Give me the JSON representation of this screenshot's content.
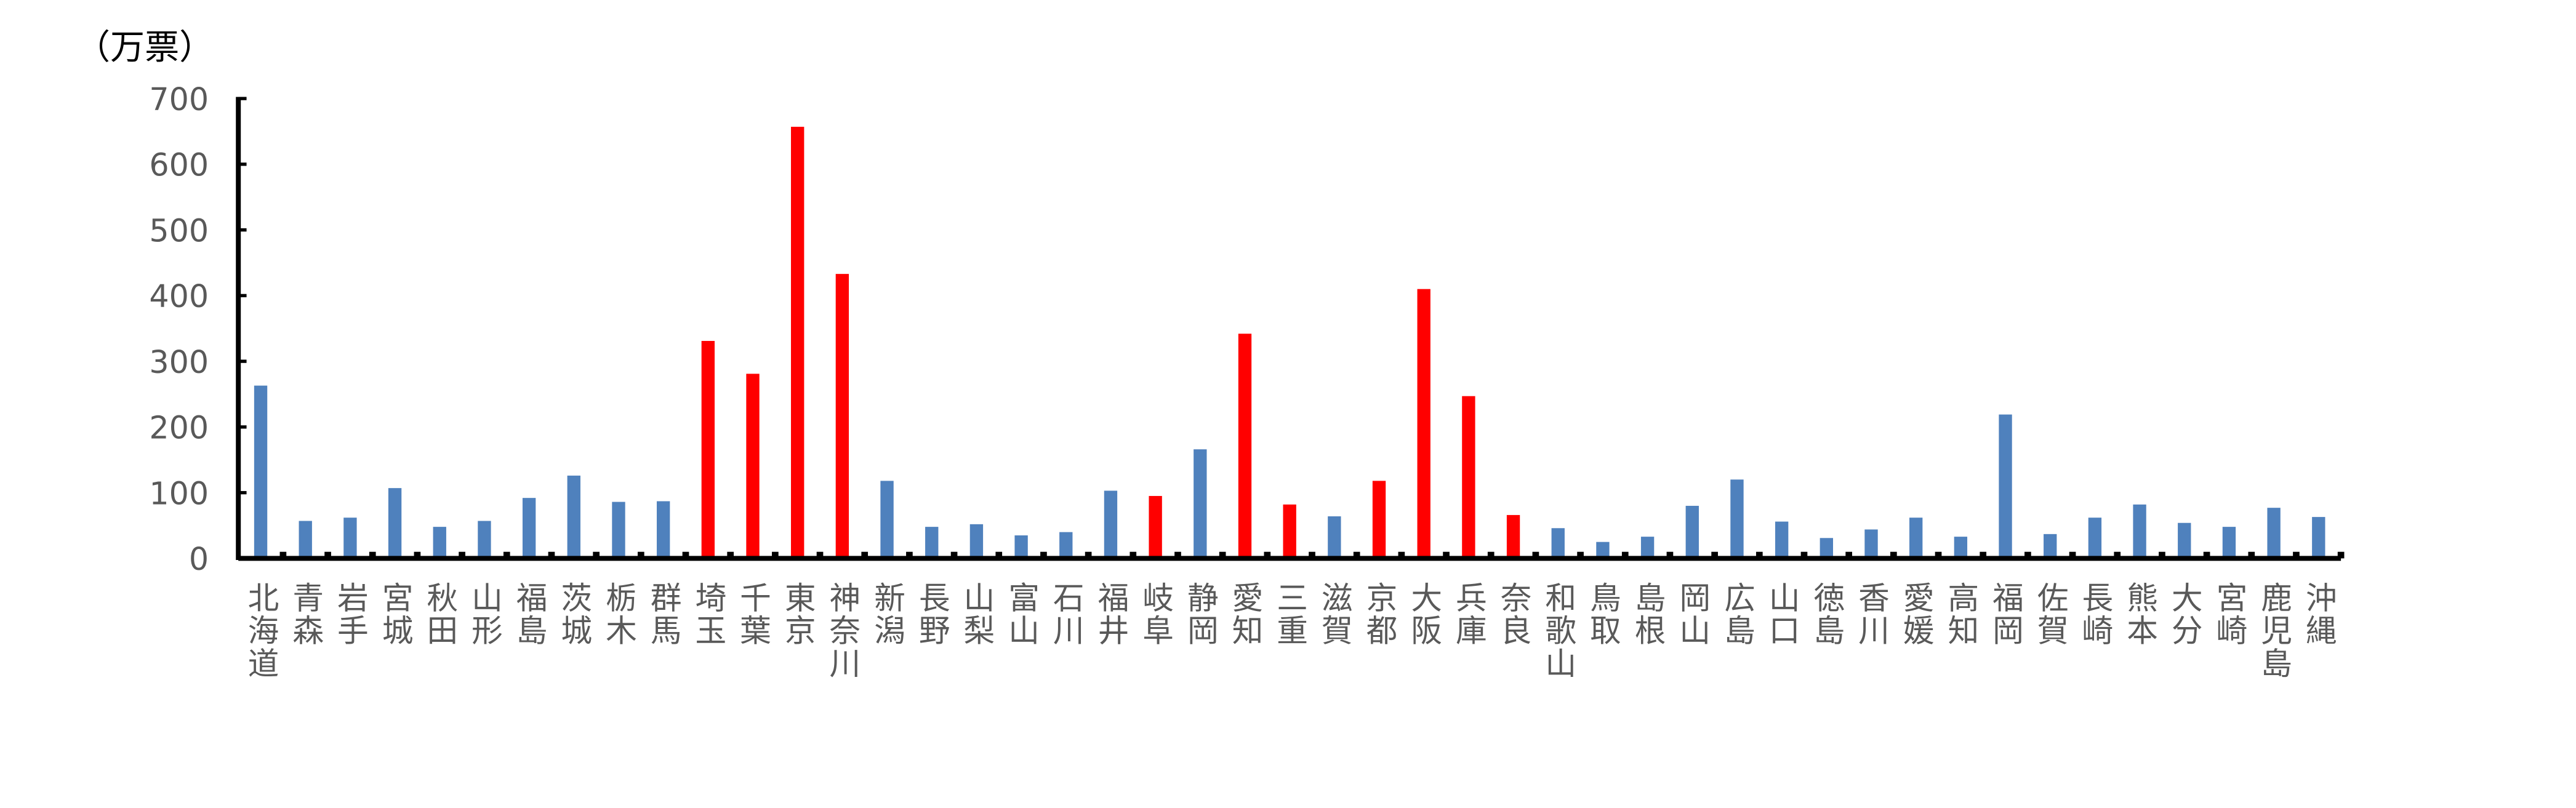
{
  "chart_data": {
    "type": "bar",
    "y_label": "（万票）",
    "categories": [
      "北海道",
      "青森",
      "岩手",
      "宮城",
      "秋田",
      "山形",
      "福島",
      "茨城",
      "栃木",
      "群馬",
      "埼玉",
      "千葉",
      "東京",
      "神奈川",
      "新潟",
      "長野",
      "山梨",
      "富山",
      "石川",
      "福井",
      "岐阜",
      "静岡",
      "愛知",
      "三重",
      "滋賀",
      "京都",
      "大阪",
      "兵庫",
      "奈良",
      "和歌山",
      "鳥取",
      "島根",
      "岡山",
      "広島",
      "山口",
      "徳島",
      "香川",
      "愛媛",
      "高知",
      "福岡",
      "佐賀",
      "長崎",
      "熊本",
      "大分",
      "宮崎",
      "鹿児島",
      "沖縄"
    ],
    "values": [
      263,
      57,
      62,
      107,
      48,
      57,
      92,
      126,
      86,
      87,
      331,
      281,
      657,
      433,
      118,
      48,
      52,
      35,
      40,
      103,
      95,
      166,
      342,
      82,
      64,
      118,
      410,
      247,
      66,
      46,
      25,
      33,
      80,
      120,
      56,
      31,
      44,
      62,
      33,
      219,
      37,
      62,
      82,
      54,
      48,
      77,
      63
    ],
    "colors": [
      "#4f81bd",
      "#4f81bd",
      "#4f81bd",
      "#4f81bd",
      "#4f81bd",
      "#4f81bd",
      "#4f81bd",
      "#4f81bd",
      "#4f81bd",
      "#4f81bd",
      "#ff0000",
      "#ff0000",
      "#ff0000",
      "#ff0000",
      "#4f81bd",
      "#4f81bd",
      "#4f81bd",
      "#4f81bd",
      "#4f81bd",
      "#4f81bd",
      "#ff0000",
      "#4f81bd",
      "#ff0000",
      "#ff0000",
      "#4f81bd",
      "#ff0000",
      "#ff0000",
      "#ff0000",
      "#ff0000",
      "#4f81bd",
      "#4f81bd",
      "#4f81bd",
      "#4f81bd",
      "#4f81bd",
      "#4f81bd",
      "#4f81bd",
      "#4f81bd",
      "#4f81bd",
      "#4f81bd",
      "#4f81bd",
      "#4f81bd",
      "#4f81bd",
      "#4f81bd",
      "#4f81bd",
      "#4f81bd",
      "#4f81bd",
      "#4f81bd"
    ],
    "ylim": [
      0,
      700
    ],
    "yticks": [
      0,
      100,
      200,
      300,
      400,
      500,
      600,
      700
    ],
    "grid": false
  }
}
